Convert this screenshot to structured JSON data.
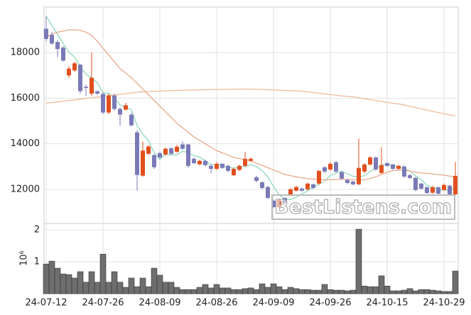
{
  "watermark": "BestListens.com",
  "chart_data": [
    {
      "type": "candlestick",
      "categories": [
        "24-07-12",
        null,
        null,
        null,
        null,
        null,
        null,
        null,
        null,
        null,
        "24-07-26",
        null,
        null,
        null,
        null,
        null,
        null,
        null,
        null,
        null,
        "24-08-09",
        null,
        null,
        null,
        null,
        null,
        null,
        null,
        null,
        null,
        "24-08-26",
        null,
        null,
        null,
        null,
        null,
        null,
        null,
        null,
        null,
        "24-09-09",
        null,
        null,
        null,
        null,
        null,
        null,
        null,
        null,
        null,
        "24-09-26",
        null,
        null,
        null,
        null,
        null,
        null,
        null,
        null,
        null,
        "24-10-15",
        null,
        null,
        null,
        null,
        null,
        null,
        null,
        null,
        null,
        "24-10-29",
        null,
        null
      ],
      "open": [
        19050,
        18780,
        18470,
        18220,
        17000,
        17220,
        17470,
        16500,
        16200,
        16300,
        16190,
        15370,
        16120,
        15530,
        15500,
        15280,
        14500,
        12600,
        13560,
        13500,
        13590,
        13530,
        13800,
        13650,
        13970,
        13970,
        13340,
        13100,
        13250,
        13030,
        12900,
        13120,
        13030,
        12620,
        12850,
        13030,
        13250,
        12530,
        12310,
        12100,
        11500,
        11220,
        11620,
        11750,
        11940,
        12030,
        12000,
        12220,
        12250,
        12970,
        12870,
        13190,
        12750,
        12410,
        12340,
        12220,
        12780,
        13090,
        13400,
        12720,
        13150,
        13090,
        12900,
        13000,
        12620,
        12500,
        12250,
        12090,
        11850,
        12090,
        11970,
        12160,
        11780
      ],
      "high": [
        19600,
        18900,
        18550,
        18300,
        17400,
        17600,
        17500,
        16600,
        18000,
        16350,
        16250,
        16200,
        16200,
        15600,
        15800,
        15350,
        14600,
        14100,
        13950,
        13550,
        13650,
        13850,
        13850,
        13950,
        14100,
        14000,
        13400,
        13300,
        13300,
        13100,
        13200,
        13150,
        13080,
        12950,
        13080,
        13650,
        13400,
        12600,
        12350,
        12150,
        11550,
        11600,
        11650,
        12050,
        12150,
        12080,
        12300,
        12250,
        12850,
        13000,
        13200,
        13250,
        12800,
        12450,
        12380,
        14230,
        13150,
        13450,
        13450,
        13850,
        13200,
        13120,
        13080,
        13050,
        12680,
        12550,
        12300,
        12130,
        12150,
        12130,
        12250,
        12200,
        13200
      ],
      "low": [
        18500,
        18350,
        17800,
        17600,
        16900,
        17150,
        16200,
        16100,
        16100,
        16150,
        15300,
        15300,
        15450,
        14800,
        15450,
        14750,
        11950,
        12550,
        13500,
        12900,
        13350,
        13480,
        13500,
        13600,
        13730,
        12950,
        13100,
        13050,
        13000,
        12700,
        12850,
        12900,
        12750,
        12580,
        12800,
        12980,
        13200,
        12300,
        12000,
        11580,
        11180,
        11180,
        11350,
        11700,
        11900,
        11900,
        11950,
        12020,
        12200,
        12700,
        12820,
        12700,
        12420,
        12230,
        12180,
        12180,
        12700,
        13040,
        12820,
        12680,
        12980,
        12850,
        12860,
        12500,
        12450,
        11920,
        11980,
        11800,
        11800,
        11770,
        11930,
        11740,
        11740
      ],
      "close": [
        18600,
        18400,
        18160,
        17650,
        17300,
        17530,
        16310,
        16450,
        16900,
        16200,
        15370,
        16120,
        15530,
        15280,
        15690,
        14810,
        12630,
        13700,
        13880,
        12970,
        13400,
        13780,
        13560,
        13870,
        13780,
        13030,
        13150,
        13250,
        13060,
        12900,
        13120,
        12940,
        12810,
        12900,
        13030,
        13340,
        13340,
        12370,
        12060,
        11620,
        11220,
        11530,
        11400,
        12000,
        12100,
        11940,
        12250,
        12060,
        12810,
        12780,
        13120,
        12780,
        12470,
        12280,
        12220,
        12940,
        13090,
        13400,
        12870,
        13060,
        13030,
        12900,
        13030,
        12560,
        12500,
        11970,
        12030,
        11840,
        12090,
        11810,
        12190,
        11780,
        12590
      ],
      "up_color": "#e0501e",
      "down_color": "#7a7ab8",
      "lines": [
        {
          "color": "#8fd8bc",
          "values": [
            19600,
            19200,
            18800,
            18400,
            18022,
            17808,
            17390,
            17048,
            16898,
            16678,
            16246,
            16208,
            16024,
            15700,
            15598,
            15486,
            14788,
            14422,
            14142,
            13598,
            13316,
            13546,
            13518,
            13516,
            13678,
            13604,
            13478,
            13416,
            13254,
            13078,
            13096,
            13054,
            12966,
            12934,
            12960,
            13004,
            13084,
            12996,
            12828,
            12546,
            12122,
            11760,
            11566,
            11554,
            11650,
            11794,
            11938,
            12070,
            12232,
            12368,
            12604,
            12710,
            12792,
            12686,
            12574,
            12538,
            12600,
            12786,
            12904,
            13072,
            13090,
            13052,
            12978,
            12916,
            12804,
            12592,
            12418,
            12180,
            12086,
            11948,
            11992,
            11942,
            12092
          ]
        },
        {
          "color": "#e8a88c",
          "values": [
            18700,
            18800,
            18900,
            18950,
            19000,
            19000,
            18980,
            18900,
            18750,
            18500,
            18200,
            17900,
            17600,
            17300,
            17100,
            16900,
            16650,
            16400,
            16150,
            15900,
            15650,
            15400,
            15150,
            14900,
            14700,
            14500,
            14300,
            14150,
            14000,
            13850,
            13700,
            13600,
            13500,
            13400,
            13350,
            13300,
            13250,
            13150,
            13050,
            12950,
            12850,
            12750,
            12650,
            12600,
            12550,
            12500,
            12470,
            12450,
            12430,
            12420,
            12420,
            12430,
            12440,
            12440,
            12420,
            12400,
            12420,
            12480,
            12550,
            12650,
            12750,
            12820,
            12850,
            12830,
            12800,
            12750,
            12720,
            12700,
            12680,
            12650,
            12620,
            12580,
            12550
          ]
        },
        {
          "color": "#eebc9c",
          "values": [
            15780,
            15810,
            15840,
            15870,
            15900,
            15930,
            15960,
            15990,
            16020,
            16050,
            16080,
            16110,
            16140,
            16170,
            16200,
            16230,
            16260,
            16280,
            16290,
            16300,
            16310,
            16320,
            16330,
            16340,
            16350,
            16360,
            16365,
            16370,
            16375,
            16380,
            16380,
            16385,
            16390,
            16395,
            16400,
            16400,
            16400,
            16390,
            16380,
            16370,
            16360,
            16350,
            16340,
            16330,
            16320,
            16310,
            16280,
            16250,
            16220,
            16190,
            16160,
            16130,
            16100,
            16080,
            16060,
            16020,
            15980,
            15940,
            15900,
            15860,
            15820,
            15780,
            15750,
            15700,
            15640,
            15590,
            15530,
            15480,
            15420,
            15370,
            15320,
            15270,
            15220
          ]
        }
      ],
      "ylim": [
        10500,
        20000
      ],
      "yticks": [
        12000,
        14000,
        16000,
        18000
      ],
      "grid": true
    },
    {
      "type": "bar",
      "values": [
        0.93,
        1.02,
        0.8,
        0.62,
        0.6,
        0.49,
        0.69,
        0.36,
        0.69,
        0.36,
        1.24,
        0.36,
        0.69,
        0.36,
        0.2,
        0.49,
        0.22,
        0.49,
        0.22,
        0.8,
        0.58,
        0.36,
        0.36,
        0.2,
        0.13,
        0.13,
        0.13,
        0.2,
        0.29,
        0.18,
        0.29,
        0.18,
        0.18,
        0.13,
        0.13,
        0.16,
        0.18,
        0.13,
        0.31,
        0.2,
        0.31,
        0.22,
        0.13,
        0.2,
        0.16,
        0.13,
        0.13,
        0.11,
        0.11,
        0.29,
        0.13,
        0.11,
        0.11,
        0.09,
        0.11,
        2.02,
        0.24,
        0.22,
        0.22,
        0.56,
        0.24,
        0.09,
        0.09,
        0.11,
        0.16,
        0.09,
        0.13,
        0.13,
        0.11,
        0.09,
        0.07,
        0.07,
        0.71
      ],
      "color": "#6e6e6e",
      "ylim": [
        0,
        2.2
      ],
      "yticks": [
        1,
        2
      ],
      "y_label": "10⁶",
      "grid": true
    }
  ]
}
